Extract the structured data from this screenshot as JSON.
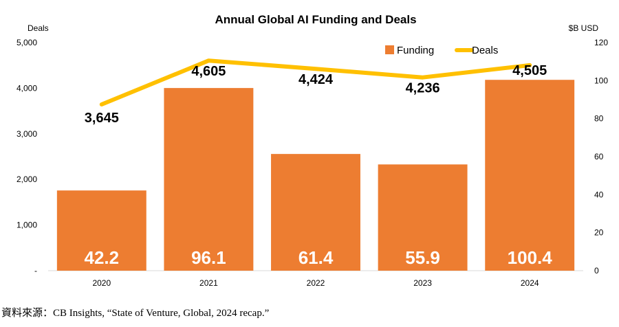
{
  "chart_data": {
    "type": "bar",
    "title": "Annual Global AI Funding and Deals",
    "categories": [
      "2020",
      "2021",
      "2022",
      "2023",
      "2024"
    ],
    "series": [
      {
        "name": "Funding",
        "type": "bar",
        "axis": "right",
        "values": [
          42.2,
          96.1,
          61.4,
          55.9,
          100.4
        ],
        "color": "#ED7D31"
      },
      {
        "name": "Deals",
        "type": "line",
        "axis": "left",
        "values": [
          3645,
          4605,
          4424,
          4236,
          4505
        ],
        "color": "#FFC000"
      }
    ],
    "left_axis": {
      "unit_label": "Deals",
      "ylim": [
        0,
        5000
      ],
      "ticks": [
        "-",
        "1,000",
        "2,000",
        "3,000",
        "4,000",
        "5,000"
      ]
    },
    "right_axis": {
      "unit_label": "$B USD",
      "ylim": [
        0,
        120
      ],
      "ticks": [
        "0",
        "20",
        "40",
        "60",
        "80",
        "100",
        "120"
      ]
    },
    "bar_labels": [
      "42.2",
      "96.1",
      "61.4",
      "55.9",
      "100.4"
    ],
    "line_labels": [
      "3,645",
      "4,605",
      "4,424",
      "4,236",
      "4,505"
    ],
    "legend": [
      {
        "name": "Funding",
        "color": "#ED7D31",
        "marker": "square"
      },
      {
        "name": "Deals",
        "color": "#FFC000",
        "marker": "line"
      }
    ],
    "legend_position": "top-right",
    "grid": false
  },
  "source_text": "資料來源：CB Insights, “State of Venture, Global, 2024 recap.”"
}
